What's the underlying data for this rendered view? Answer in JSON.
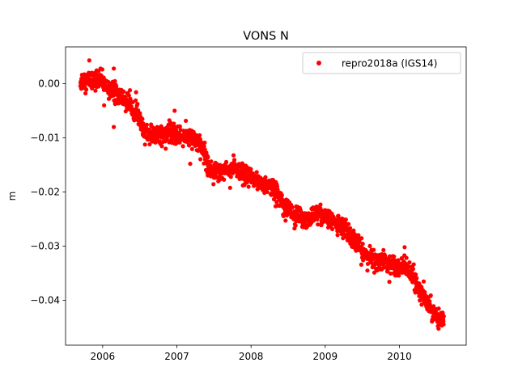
{
  "chart_data": {
    "type": "scatter",
    "title": "VONS N",
    "xlabel": "",
    "ylabel": "m",
    "xlim": [
      2005.5,
      2010.9
    ],
    "ylim": [
      -0.0483,
      0.0068
    ],
    "x_ticks": [
      2006,
      2007,
      2008,
      2009,
      2010
    ],
    "x_tick_labels": [
      "2006",
      "2007",
      "2008",
      "2009",
      "2010"
    ],
    "y_ticks": [
      0.0,
      -0.01,
      -0.02,
      -0.03,
      -0.04
    ],
    "y_tick_labels": [
      "0.00",
      "−0.01",
      "−0.02",
      "−0.03",
      "−0.04"
    ],
    "grid": false,
    "legend_position": "top-right",
    "series": [
      {
        "name": "repro2018a (IGS14)",
        "color": "#ff0000",
        "marker": "circle",
        "trend_knots": [
          [
            2005.7,
            0.0005
          ],
          [
            2005.95,
            0.0008
          ],
          [
            2006.1,
            -0.001
          ],
          [
            2006.3,
            -0.003
          ],
          [
            2006.45,
            -0.005
          ],
          [
            2006.55,
            -0.009
          ],
          [
            2006.7,
            -0.0095
          ],
          [
            2006.85,
            -0.009
          ],
          [
            2007.0,
            -0.0095
          ],
          [
            2007.2,
            -0.01
          ],
          [
            2007.35,
            -0.012
          ],
          [
            2007.45,
            -0.016
          ],
          [
            2007.6,
            -0.016
          ],
          [
            2007.75,
            -0.0155
          ],
          [
            2007.9,
            -0.017
          ],
          [
            2008.1,
            -0.018
          ],
          [
            2008.3,
            -0.0195
          ],
          [
            2008.45,
            -0.022
          ],
          [
            2008.6,
            -0.0245
          ],
          [
            2008.75,
            -0.025
          ],
          [
            2008.9,
            -0.024
          ],
          [
            2009.05,
            -0.025
          ],
          [
            2009.2,
            -0.026
          ],
          [
            2009.35,
            -0.028
          ],
          [
            2009.5,
            -0.031
          ],
          [
            2009.65,
            -0.0325
          ],
          [
            2009.8,
            -0.033
          ],
          [
            2009.95,
            -0.0335
          ],
          [
            2010.1,
            -0.034
          ],
          [
            2010.2,
            -0.036
          ],
          [
            2010.3,
            -0.039
          ],
          [
            2010.45,
            -0.042
          ],
          [
            2010.6,
            -0.044
          ]
        ],
        "noise_sd": 0.0009,
        "step_days": 1,
        "outliers": [
          [
            2005.82,
            0.0043
          ],
          [
            2006.15,
            0.0028
          ],
          [
            2006.15,
            -0.008
          ],
          [
            2006.97,
            -0.005
          ],
          [
            2010.07,
            -0.0302
          ],
          [
            2006.02,
            -0.004
          ],
          [
            2007.18,
            -0.0148
          ],
          [
            2008.6,
            -0.0262
          ]
        ]
      }
    ]
  }
}
